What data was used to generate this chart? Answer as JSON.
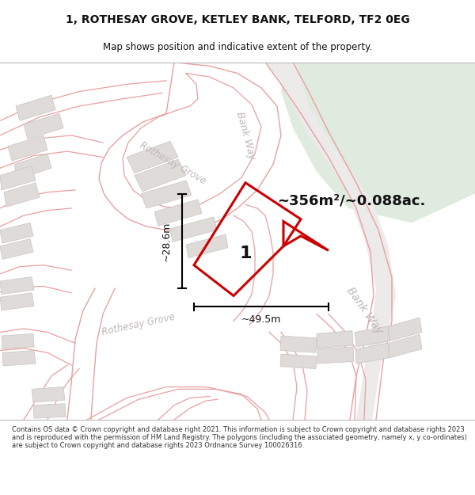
{
  "title_line1": "1, ROTHESAY GROVE, KETLEY BANK, TELFORD, TF2 0EG",
  "title_line2": "Map shows position and indicative extent of the property.",
  "area_text": "~356m²/~0.088ac.",
  "label_number": "1",
  "dim_height": "~28.6m",
  "dim_width": "~49.5m",
  "footer_text": "Contains OS data © Crown copyright and database right 2021. This information is subject to Crown copyright and database rights 2023 and is reproduced with the permission of HM Land Registry. The polygons (including the associated geometry, namely x, y co-ordinates) are subject to Crown copyright and database rights 2023 Ordnance Survey 100026316.",
  "map_bg": "#f5f3f3",
  "road_color": "#e8a0a0",
  "building_color": "#dedbd8",
  "building_outline": "#c8c4c0",
  "green_color": "#e0ebe0",
  "plot_color": "#cc0000",
  "text_color": "#111111",
  "label_color": "#c0b8b8",
  "title_fontsize": 10,
  "subtitle_fontsize": 8.5,
  "footer_fontsize": 6.0
}
